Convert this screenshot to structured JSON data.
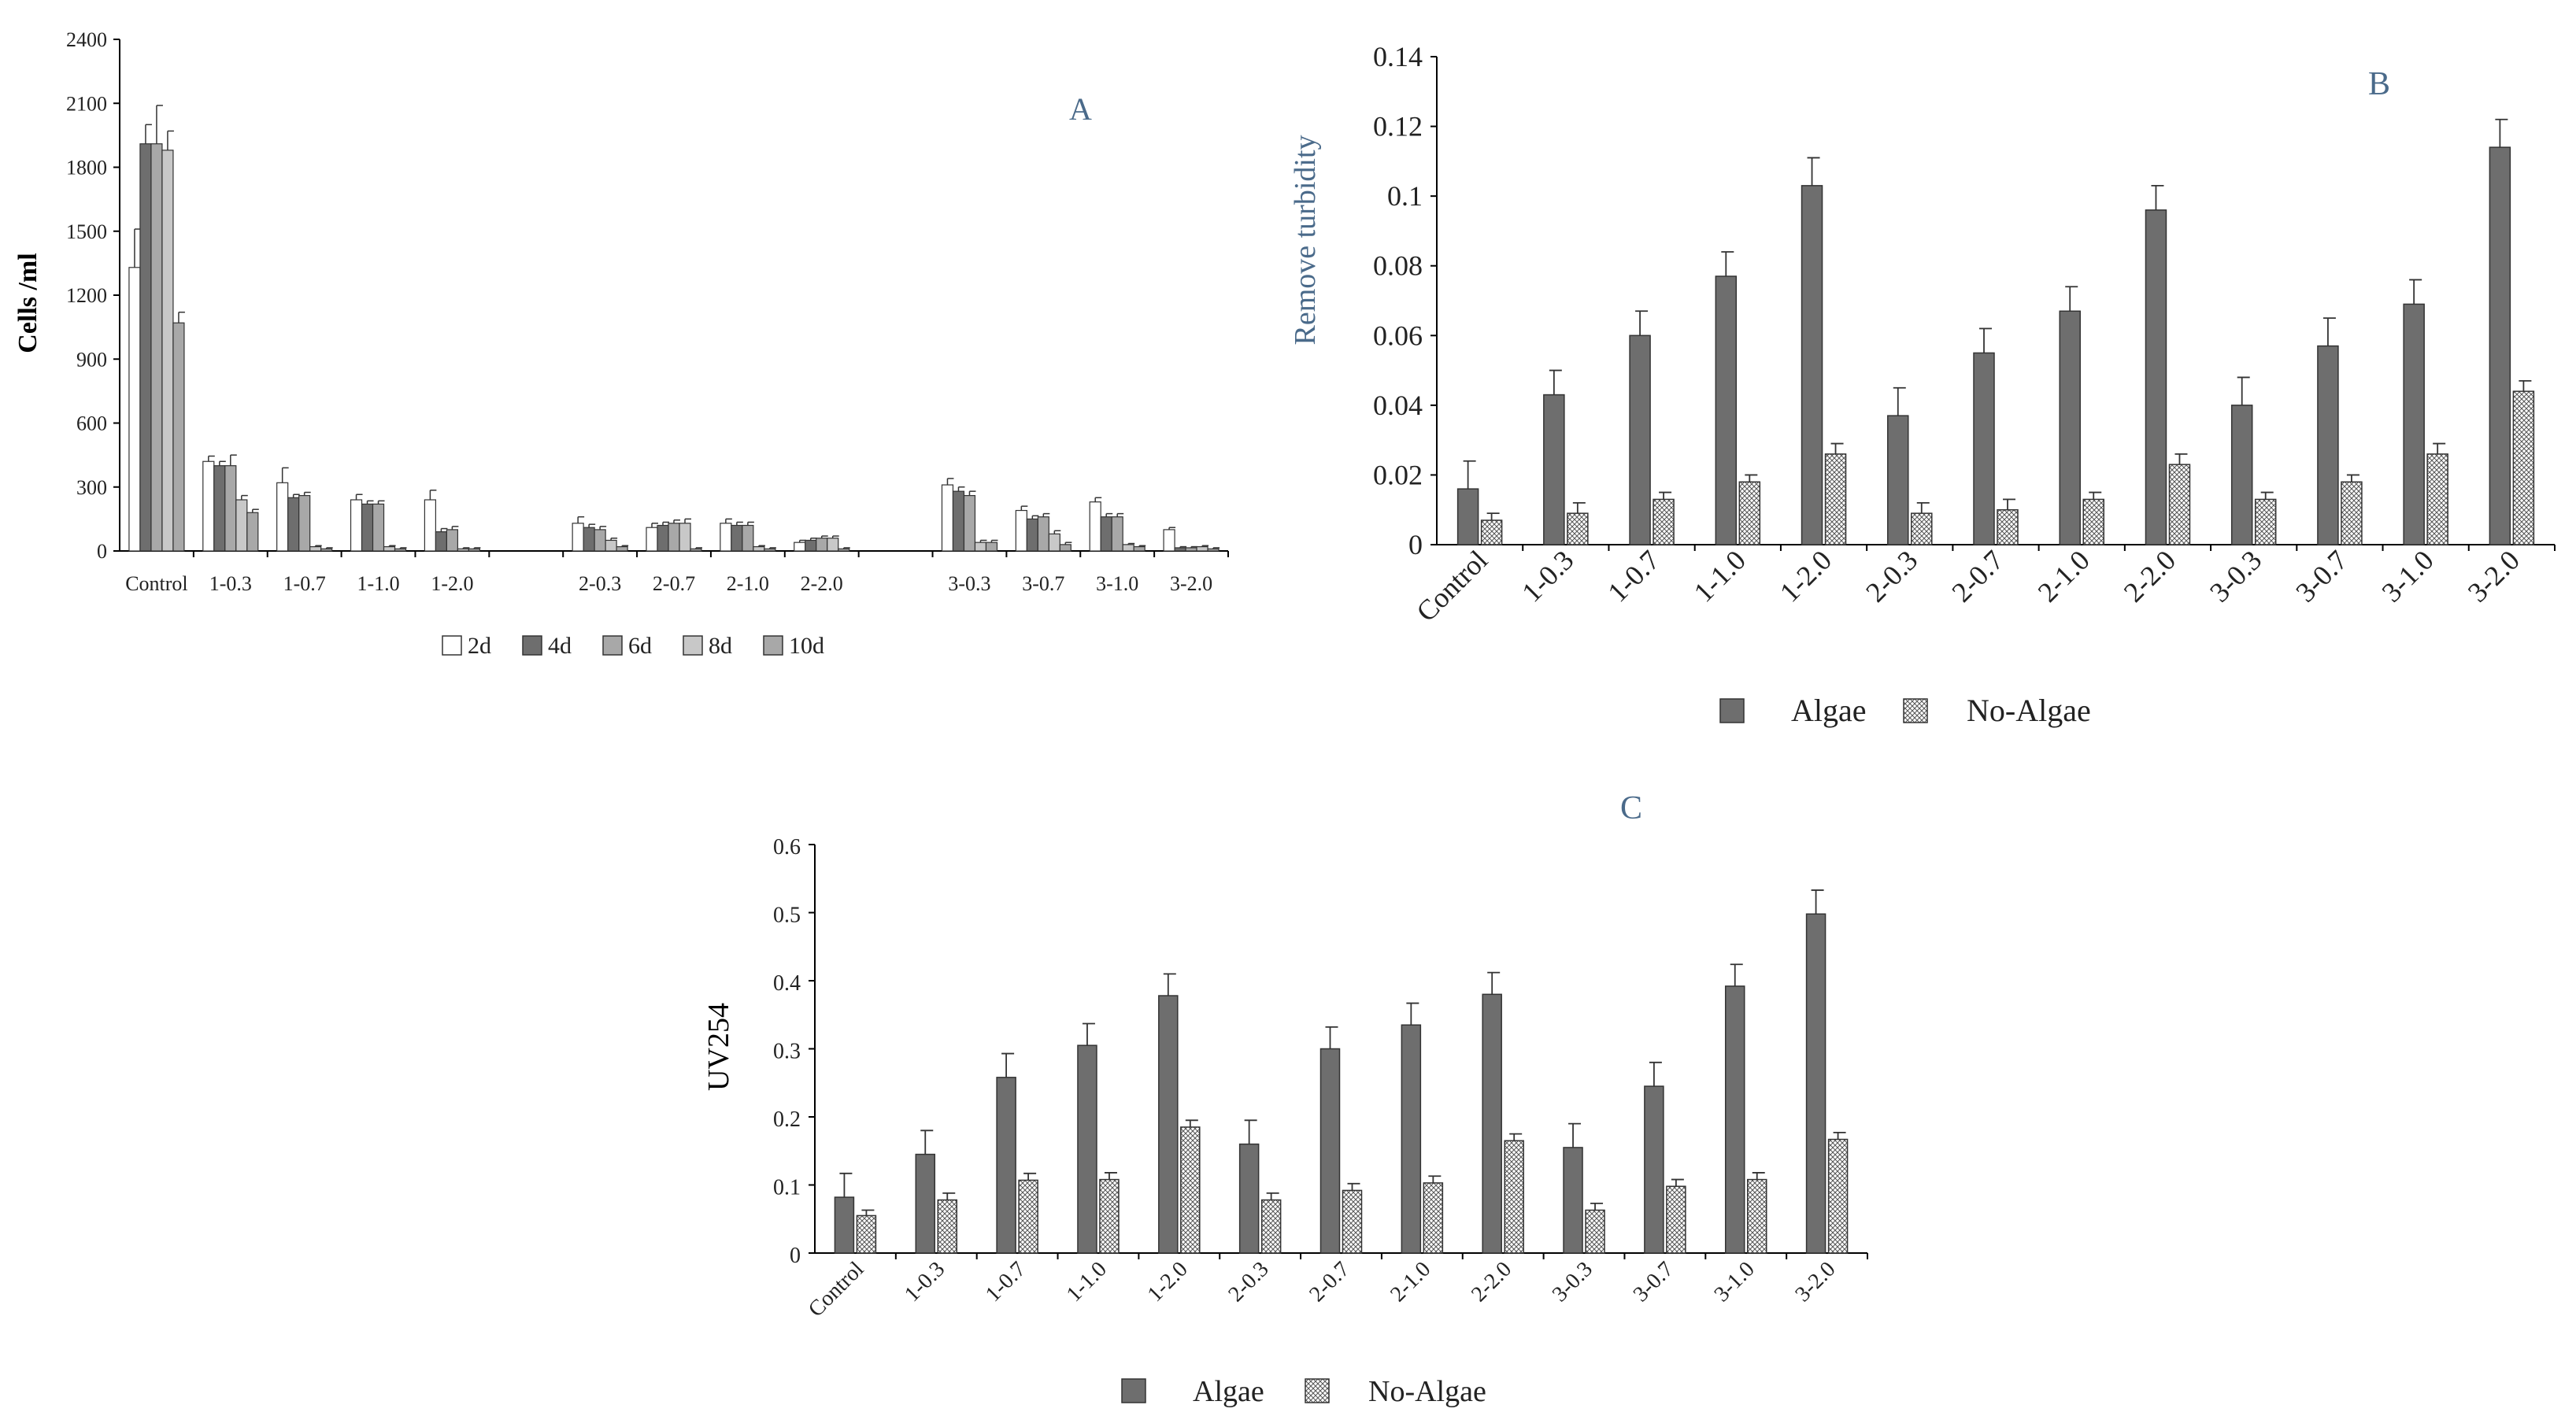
{
  "colors": {
    "axis": "#000000",
    "dark": "#6e6e6e",
    "medium": "#a8a8a8",
    "light": "#c8c8c8",
    "white": "#ffffff",
    "hatch": "#d9d9d9",
    "title": "#4a6a8a"
  },
  "chart_data": [
    {
      "id": "A",
      "type": "bar",
      "title": "A",
      "ylabel": "Cells /ml",
      "xlabel": "",
      "ylim": [
        0,
        2400
      ],
      "yticks": [
        0,
        300,
        600,
        900,
        1200,
        1500,
        1800,
        2100,
        2400
      ],
      "categories": [
        "Control",
        "1-0.3",
        "1-0.7",
        "1-1.0",
        "1-2.0",
        "",
        "2-0.3",
        "2-0.7",
        "2-1.0",
        "2-2.0",
        "",
        "3-0.3",
        "3-0.7",
        "3-1.0",
        "3-2.0"
      ],
      "series": [
        {
          "name": "2d",
          "values": [
            1330,
            420,
            320,
            240,
            240,
            null,
            130,
            110,
            130,
            40,
            null,
            310,
            190,
            230,
            100
          ],
          "errors": [
            180,
            25,
            70,
            25,
            45,
            null,
            30,
            20,
            20,
            10,
            null,
            30,
            20,
            20,
            10
          ]
        },
        {
          "name": "4d",
          "values": [
            1910,
            400,
            250,
            220,
            90,
            null,
            110,
            120,
            120,
            50,
            null,
            280,
            150,
            160,
            15
          ],
          "errors": [
            90,
            20,
            15,
            15,
            15,
            null,
            15,
            15,
            15,
            10,
            null,
            20,
            15,
            15,
            5
          ]
        },
        {
          "name": "6d",
          "values": [
            1910,
            400,
            260,
            220,
            100,
            null,
            100,
            130,
            120,
            60,
            null,
            260,
            160,
            160,
            15
          ],
          "errors": [
            180,
            50,
            15,
            15,
            15,
            null,
            15,
            15,
            15,
            10,
            null,
            20,
            15,
            15,
            5
          ]
        },
        {
          "name": "8d",
          "values": [
            1880,
            240,
            20,
            20,
            10,
            null,
            50,
            130,
            20,
            60,
            null,
            40,
            80,
            30,
            20
          ],
          "errors": [
            90,
            20,
            5,
            5,
            5,
            null,
            10,
            20,
            5,
            10,
            null,
            10,
            15,
            5,
            5
          ]
        },
        {
          "name": "10d",
          "values": [
            1070,
            180,
            10,
            10,
            10,
            null,
            20,
            10,
            10,
            10,
            null,
            40,
            30,
            20,
            10
          ],
          "errors": [
            50,
            15,
            5,
            5,
            5,
            null,
            5,
            5,
            5,
            5,
            null,
            10,
            10,
            5,
            5
          ]
        }
      ],
      "legend": "bottom"
    },
    {
      "id": "B",
      "type": "bar",
      "title": "B",
      "ylabel": "Remove turbidity",
      "xlabel": "",
      "ylim": [
        0,
        0.14
      ],
      "yticks": [
        "0",
        "0.02",
        "0.04",
        "0.06",
        "0.08",
        "0.1",
        "0.12",
        "0.14"
      ],
      "categories": [
        "Control",
        "1-0.3",
        "1-0.7",
        "1-1.0",
        "1-2.0",
        "2-0.3",
        "2-0.7",
        "2-1.0",
        "2-2.0",
        "3-0.3",
        "3-0.7",
        "3-1.0",
        "3-2.0"
      ],
      "series": [
        {
          "name": "Algae",
          "values": [
            0.016,
            0.043,
            0.06,
            0.077,
            0.103,
            0.037,
            0.055,
            0.067,
            0.096,
            0.04,
            0.057,
            0.069,
            0.114
          ],
          "errors": [
            0.008,
            0.007,
            0.007,
            0.007,
            0.008,
            0.008,
            0.007,
            0.007,
            0.007,
            0.008,
            0.008,
            0.007,
            0.008
          ]
        },
        {
          "name": "No-Algae",
          "values": [
            0.007,
            0.009,
            0.013,
            0.018,
            0.026,
            0.009,
            0.01,
            0.013,
            0.023,
            0.013,
            0.018,
            0.026,
            0.044
          ],
          "errors": [
            0.002,
            0.003,
            0.002,
            0.002,
            0.003,
            0.003,
            0.003,
            0.002,
            0.003,
            0.002,
            0.002,
            0.003,
            0.003
          ]
        }
      ],
      "legend": "bottom"
    },
    {
      "id": "C",
      "type": "bar",
      "title": "C",
      "ylabel": "UV254",
      "xlabel": "",
      "ylim": [
        0,
        0.6
      ],
      "yticks": [
        "0",
        "0.1",
        "0.2",
        "0.3",
        "0.4",
        "0.5",
        "0.6"
      ],
      "categories": [
        "Control",
        "1-0.3",
        "1-0.7",
        "1-1.0",
        "1-2.0",
        "2-0.3",
        "2-0.7",
        "2-1.0",
        "2-2.0",
        "3-0.3",
        "3-0.7",
        "3-1.0",
        "3-2.0"
      ],
      "series": [
        {
          "name": "Algae",
          "values": [
            0.082,
            0.145,
            0.258,
            0.305,
            0.378,
            0.16,
            0.3,
            0.335,
            0.38,
            0.155,
            0.245,
            0.392,
            0.498
          ],
          "errors": [
            0.035,
            0.035,
            0.035,
            0.032,
            0.032,
            0.035,
            0.032,
            0.032,
            0.032,
            0.035,
            0.035,
            0.032,
            0.035
          ]
        },
        {
          "name": "No-Algae",
          "values": [
            0.055,
            0.078,
            0.107,
            0.108,
            0.185,
            0.078,
            0.092,
            0.103,
            0.165,
            0.063,
            0.098,
            0.108,
            0.167
          ],
          "errors": [
            0.008,
            0.01,
            0.01,
            0.01,
            0.01,
            0.01,
            0.01,
            0.01,
            0.01,
            0.01,
            0.01,
            0.01,
            0.01
          ]
        }
      ],
      "legend": "bottom"
    }
  ]
}
